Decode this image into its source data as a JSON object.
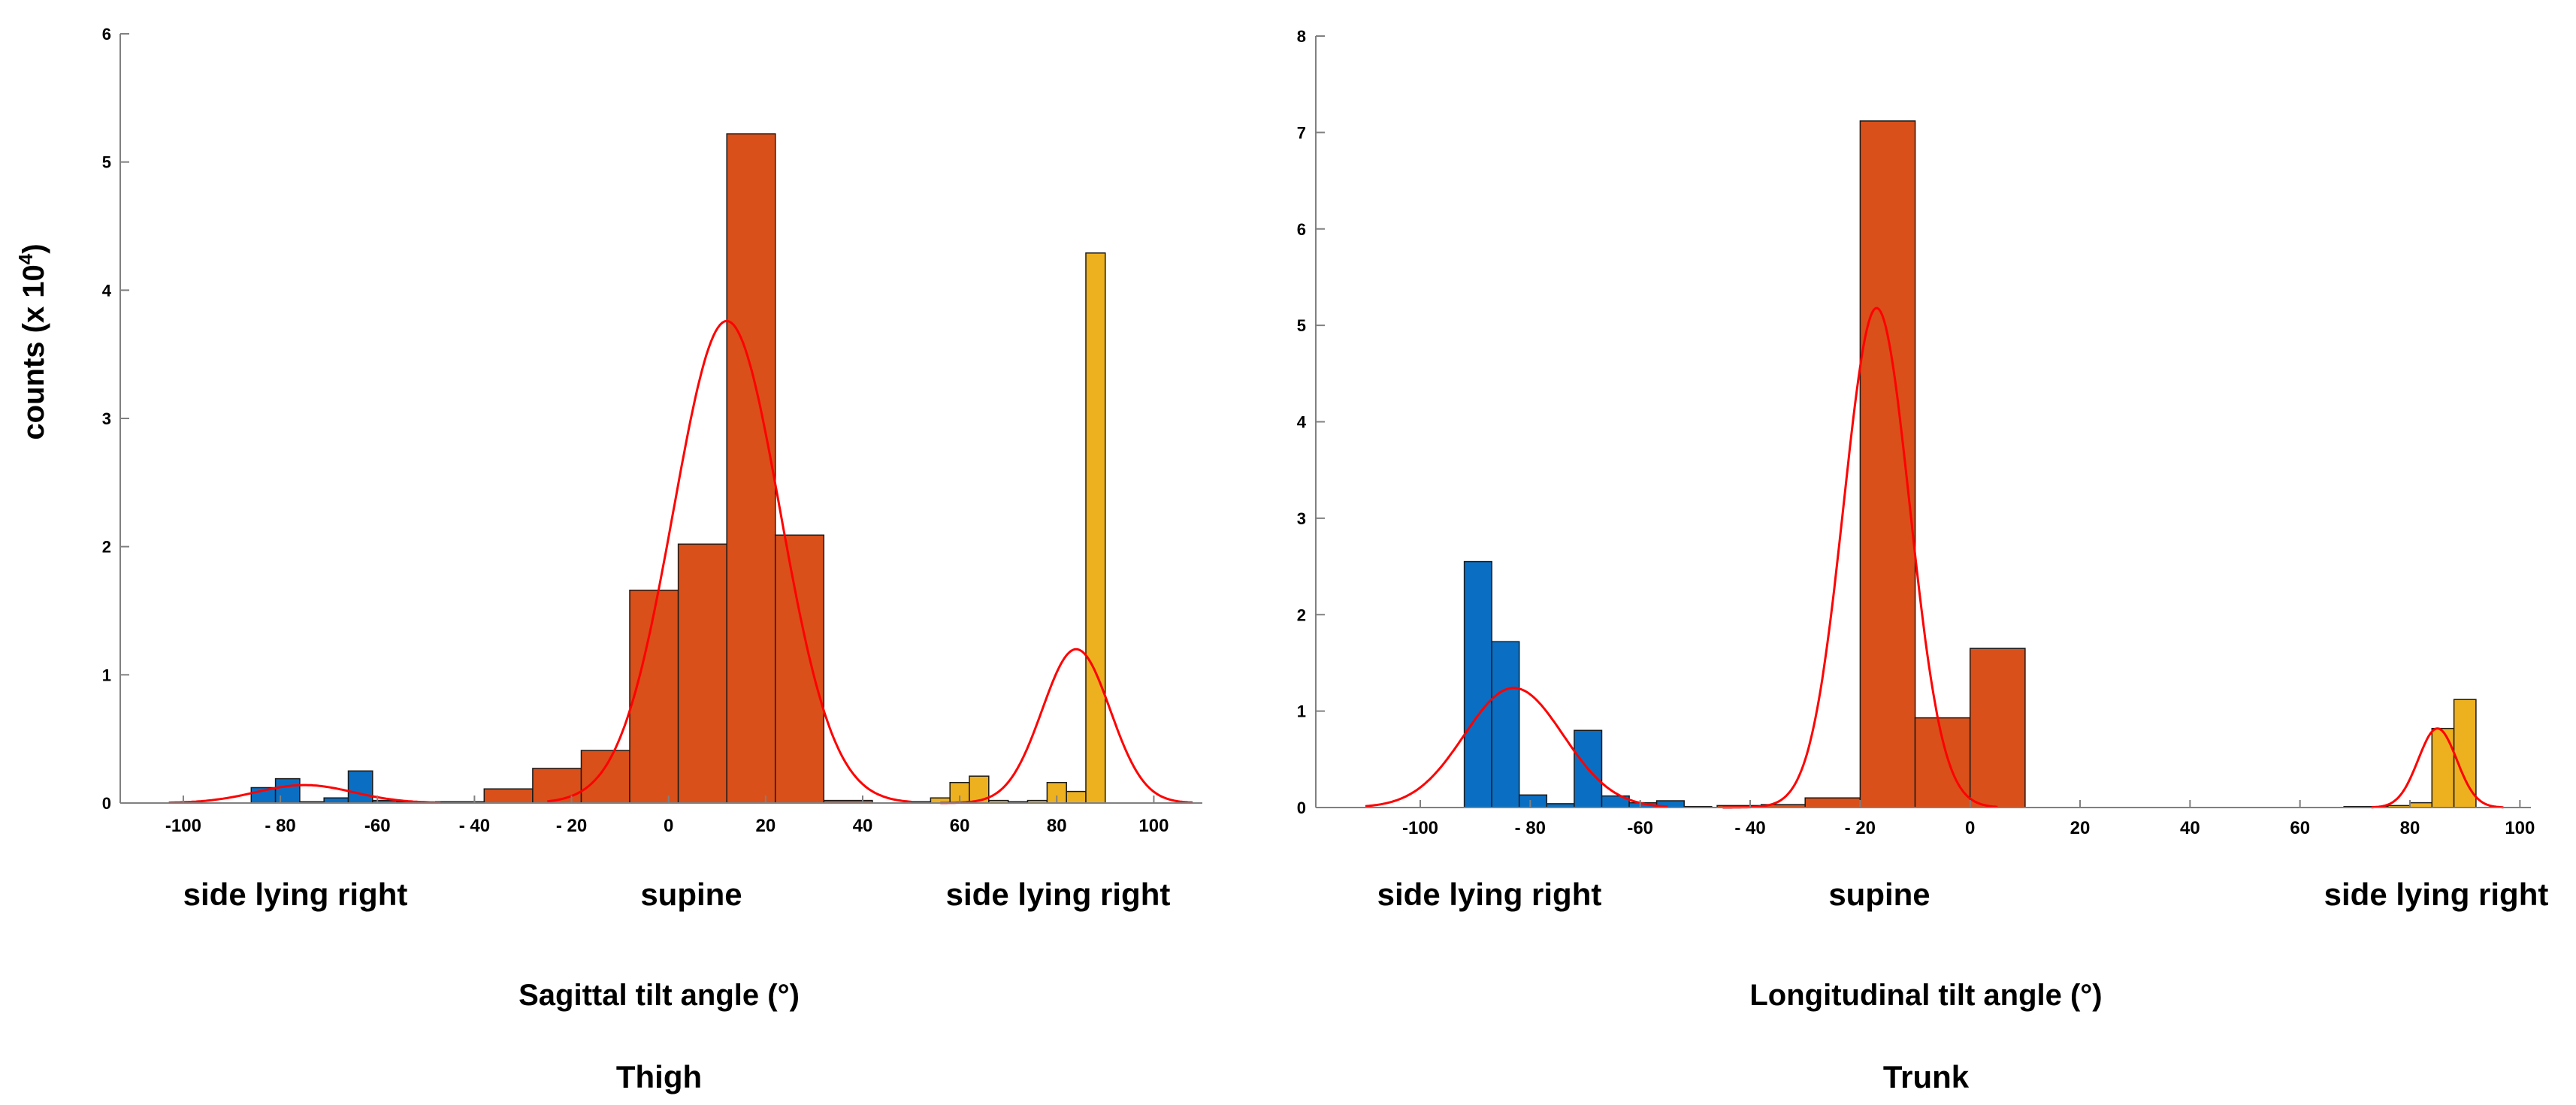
{
  "colors": {
    "blue": "#0a6fc2",
    "orange": "#d9501a",
    "yellow": "#edb120",
    "fit": "#ff0000",
    "axis": "#808080"
  },
  "figure": {
    "ylabel": "counts (x 10",
    "ylabel_sup": "4",
    "ylabel_close": ")"
  },
  "chart_data": [
    {
      "type": "histogram",
      "title": "Thigh",
      "xlabel": "Sagittal tilt angle (°)",
      "ylabel": "counts (x 10^4)",
      "xlim": [
        -113,
        110
      ],
      "ylim": [
        0,
        6
      ],
      "xticks": [
        -100,
        -80,
        -60,
        -40,
        -20,
        0,
        20,
        40,
        60,
        80,
        100
      ],
      "xtick_labels": [
        "-100",
        "- 80",
        "-60",
        "- 40",
        "- 20",
        "0",
        "20",
        "40",
        "60",
        "80",
        "100"
      ],
      "yticks": [
        0,
        1,
        2,
        3,
        4,
        5,
        6
      ],
      "ytick_labels": [
        "0",
        "1",
        "2",
        "3",
        "4",
        "5",
        "6"
      ],
      "region_labels": [
        "side lying right",
        "supine",
        "side lying right"
      ],
      "series": [
        {
          "name": "side lying (blue)",
          "color": "blue",
          "bins": [
            [
              -86,
              -81,
              0.12
            ],
            [
              -81,
              -76,
              0.19
            ],
            [
              -76,
              -71,
              0.01
            ],
            [
              -71,
              -66,
              0.04
            ],
            [
              -66,
              -61,
              0.25
            ],
            [
              -61,
              -56,
              0.02
            ],
            [
              -56,
              -51,
              0.01
            ]
          ]
        },
        {
          "name": "supine (orange)",
          "color": "orange",
          "bins": [
            [
              -48,
              -38,
              0.01
            ],
            [
              -38,
              -28,
              0.11
            ],
            [
              -28,
              -18,
              0.27
            ],
            [
              -18,
              -8,
              0.41
            ],
            [
              -8,
              2,
              1.66
            ],
            [
              2,
              12,
              2.02
            ],
            [
              12,
              22,
              5.22
            ],
            [
              22,
              32,
              2.09
            ],
            [
              32,
              42,
              0.02
            ]
          ]
        },
        {
          "name": "side lying (yellow)",
          "color": "yellow",
          "bins": [
            [
              50,
              54,
              0.01
            ],
            [
              54,
              58,
              0.04
            ],
            [
              58,
              62,
              0.16
            ],
            [
              62,
              66,
              0.21
            ],
            [
              66,
              70,
              0.02
            ],
            [
              70,
              74,
              0.01
            ],
            [
              74,
              78,
              0.02
            ],
            [
              78,
              82,
              0.16
            ],
            [
              82,
              86,
              0.09
            ],
            [
              86,
              90,
              4.29
            ]
          ]
        }
      ],
      "fits": [
        {
          "mean": -75,
          "sd": 10,
          "amp": 0.14,
          "range": [
            -103,
            -47
          ]
        },
        {
          "mean": 12,
          "sd": 11,
          "amp": 3.76,
          "range": [
            -25,
            50
          ]
        },
        {
          "mean": 84,
          "sd": 7,
          "amp": 1.2,
          "range": [
            56,
            108
          ]
        }
      ]
    },
    {
      "type": "histogram",
      "title": "Trunk",
      "xlabel": "Longitudinal tilt angle (°)",
      "ylabel": "counts (x 10^4)",
      "xlim": [
        -119,
        102
      ],
      "ylim": [
        0,
        8
      ],
      "xticks": [
        -100,
        -80,
        -60,
        -40,
        -20,
        0,
        20,
        40,
        60,
        80,
        100
      ],
      "xtick_labels": [
        "-100",
        "- 80",
        "-60",
        "- 40",
        "- 20",
        "0",
        "20",
        "40",
        "60",
        "80",
        "100"
      ],
      "yticks": [
        0,
        1,
        2,
        3,
        4,
        5,
        6,
        7,
        8
      ],
      "ytick_labels": [
        "0",
        "1",
        "2",
        "3",
        "4",
        "5",
        "6",
        "7",
        "8"
      ],
      "region_labels": [
        "side lying right",
        "supine",
        "side lying right"
      ],
      "series": [
        {
          "name": "side lying (blue)",
          "color": "blue",
          "bins": [
            [
              -92,
              -87,
              2.55
            ],
            [
              -87,
              -82,
              1.72
            ],
            [
              -82,
              -77,
              0.13
            ],
            [
              -77,
              -72,
              0.04
            ],
            [
              -72,
              -67,
              0.8
            ],
            [
              -67,
              -62,
              0.12
            ],
            [
              -62,
              -57,
              0.05
            ],
            [
              -57,
              -52,
              0.07
            ],
            [
              -52,
              -47,
              0.01
            ]
          ]
        },
        {
          "name": "supine (orange)",
          "color": "orange",
          "bins": [
            [
              -46,
              -38,
              0.02
            ],
            [
              -38,
              -30,
              0.03
            ],
            [
              -30,
              -20,
              0.1
            ],
            [
              -20,
              -10,
              7.12
            ],
            [
              -10,
              0,
              0.93
            ],
            [
              0,
              10,
              1.65
            ]
          ]
        },
        {
          "name": "side lying (yellow)",
          "color": "yellow",
          "bins": [
            [
              68,
              72,
              0.01
            ],
            [
              72,
              76,
              0.01
            ],
            [
              76,
              80,
              0.02
            ],
            [
              80,
              84,
              0.05
            ],
            [
              84,
              88,
              0.82
            ],
            [
              88,
              92,
              1.12
            ]
          ]
        }
      ],
      "fits": [
        {
          "mean": -83,
          "sd": 9,
          "amp": 1.24,
          "range": [
            -110,
            -55
          ]
        },
        {
          "mean": -17,
          "sd": 6,
          "amp": 5.18,
          "range": [
            -45,
            5
          ]
        },
        {
          "mean": 85,
          "sd": 3.5,
          "amp": 0.82,
          "range": [
            73,
            97
          ]
        }
      ]
    }
  ]
}
